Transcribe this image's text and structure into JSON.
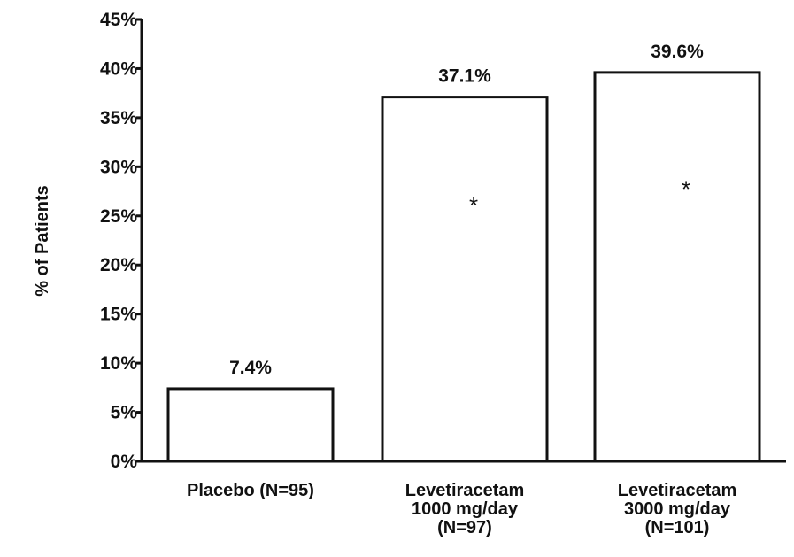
{
  "chart_data": {
    "type": "bar",
    "categories": [
      [
        "Placebo (N=95)"
      ],
      [
        "Levetiracetam",
        "1000 mg/day",
        "(N=97)"
      ],
      [
        "Levetiracetam",
        "3000 mg/day",
        "(N=101)"
      ]
    ],
    "values": [
      7.4,
      37.1,
      39.6
    ],
    "data_labels": [
      "7.4%",
      "37.1%",
      "39.6%"
    ],
    "significance_markers": [
      "",
      "*",
      "*"
    ],
    "ylabel": "% of Patients",
    "xlabel": "",
    "ylim": [
      0,
      45
    ],
    "yticks": [
      0,
      5,
      10,
      15,
      20,
      25,
      30,
      35,
      40,
      45
    ],
    "ytick_labels": [
      "0%",
      "5%",
      "10%",
      "15%",
      "20%",
      "25%",
      "30%",
      "35%",
      "40%",
      "45%"
    ],
    "grid": false,
    "legend": "none",
    "bar_fill": "#ffffff",
    "bar_stroke": "#111111"
  }
}
